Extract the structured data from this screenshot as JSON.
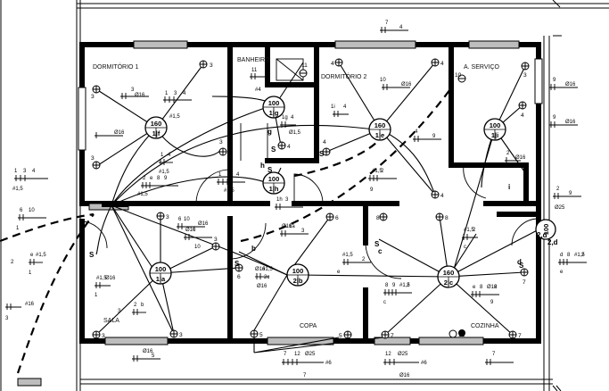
{
  "rooms": {
    "dormitorio1": "DORMITÓRIO 1",
    "banheiro": "BANHEIRO",
    "dormitorio2": "DORMITÓRIO 2",
    "servico": "A. SERVIÇO",
    "sala": "SALA",
    "copa": "COPA",
    "cozinha": "COZINHA"
  },
  "lamps": [
    {
      "top": "160",
      "bottom": "1|f"
    },
    {
      "top": "100",
      "bottom": "1|g"
    },
    {
      "top": "100",
      "bottom": "1|h"
    },
    {
      "top": "160",
      "bottom": "1|e"
    },
    {
      "top": "100",
      "bottom": "1|i"
    },
    {
      "top": "100",
      "bottom": "1|a"
    },
    {
      "top": "100",
      "bottom": "2|b"
    },
    {
      "top": "160",
      "bottom": "2|c"
    },
    {
      "top": "100",
      "bottom": "2,d"
    }
  ],
  "sockets": [
    "3",
    "3",
    "3",
    "3",
    "4",
    "4",
    "4",
    "4",
    "11",
    "3",
    "4",
    "4",
    "3",
    "6",
    "8",
    "8",
    "3",
    "3",
    "3",
    "5",
    "5",
    "7",
    "12",
    "7",
    "7",
    "8",
    "8",
    "9",
    "10",
    "6"
  ],
  "switches": [
    "S",
    "S",
    "S",
    "S",
    "S",
    "S",
    "S"
  ],
  "switch_letters": [
    "h",
    "g",
    "i",
    "d",
    "c",
    "b"
  ],
  "circuit_labels": [
    "3",
    "Ø16",
    "1",
    "3",
    "4",
    "#1,5",
    "Ø16",
    "11",
    "#4",
    "1g",
    "4",
    "Ø1,5",
    "1i",
    "4",
    "Ø16",
    "10",
    "4",
    "Ø16",
    "9",
    "Ø16",
    "9",
    "Ø16",
    "2",
    "Ø16",
    "1",
    "3",
    "4",
    "#1,5",
    "2",
    "e",
    "8",
    "9",
    "#1,5",
    "1",
    "3",
    "4",
    "#1,5",
    "1",
    "4",
    "#1,5",
    "1h",
    "3",
    "Ø16",
    "1",
    "3",
    "#1,5",
    "Ø16",
    "2",
    "e",
    "#1,5",
    "1",
    "3",
    "Ø16",
    "6",
    "10",
    "Ø16",
    "6",
    "10",
    "Ø16",
    "1a",
    "3",
    "#1,5",
    "Ø16",
    "1",
    "3",
    "2",
    "b",
    "Ø16",
    "#1,5",
    "2c",
    "Ø16",
    "#1,5",
    "2",
    "e",
    "8",
    "9",
    "#1,5",
    "2",
    "c",
    "e",
    "8",
    "Ø16",
    "2",
    "9",
    "#1,5",
    "2",
    "c",
    "d",
    "8",
    "#1,5",
    "2",
    "e",
    "Ø16",
    "#1,5",
    "2c",
    "Ø16",
    "2",
    "9",
    "Ø25",
    "#16",
    "3",
    "Ø16",
    "5",
    "7",
    "12",
    "Ø25",
    "#6",
    "7",
    "12",
    "Ø25",
    "7",
    "4",
    "Ø16",
    "#6",
    "1",
    "3"
  ],
  "markers": [
    "2,d",
    "c",
    "d",
    "b",
    "a",
    "h",
    "g",
    "i"
  ]
}
